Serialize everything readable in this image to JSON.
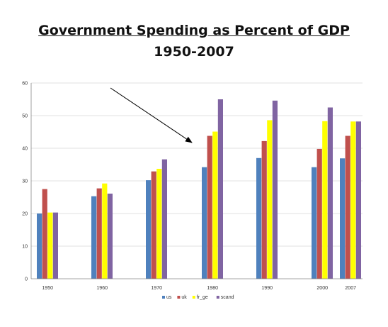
{
  "chart_data": {
    "type": "bar",
    "title": "Government Spending as Percent of GDP",
    "subtitle": "1950-2007",
    "categories": [
      "1950",
      "1960",
      "1970",
      "1980",
      "1990",
      "2000",
      "2007"
    ],
    "series": [
      {
        "name": "us",
        "color": "#4f81bd",
        "values": [
          20,
          25.3,
          30.2,
          34.2,
          37,
          34.2,
          36.9
        ]
      },
      {
        "name": "uk",
        "color": "#c0504d",
        "values": [
          27.5,
          27.7,
          32.9,
          43.8,
          42.2,
          39.8,
          43.8
        ]
      },
      {
        "name": "fr_ge",
        "color": "#ffff00",
        "values": [
          20.3,
          29.2,
          33.7,
          45.1,
          48.6,
          48.3,
          48.2
        ]
      },
      {
        "name": "scand",
        "color": "#8064a2",
        "values": [
          20.3,
          26.1,
          36.6,
          55,
          54.6,
          52.5,
          48.2
        ]
      }
    ],
    "ylim": [
      0,
      60
    ],
    "yticks": [
      0,
      10,
      20,
      30,
      40,
      50,
      60
    ],
    "grid": true,
    "legend": "bottom-center",
    "annotation": "arrow pointing to 1980 bars"
  }
}
